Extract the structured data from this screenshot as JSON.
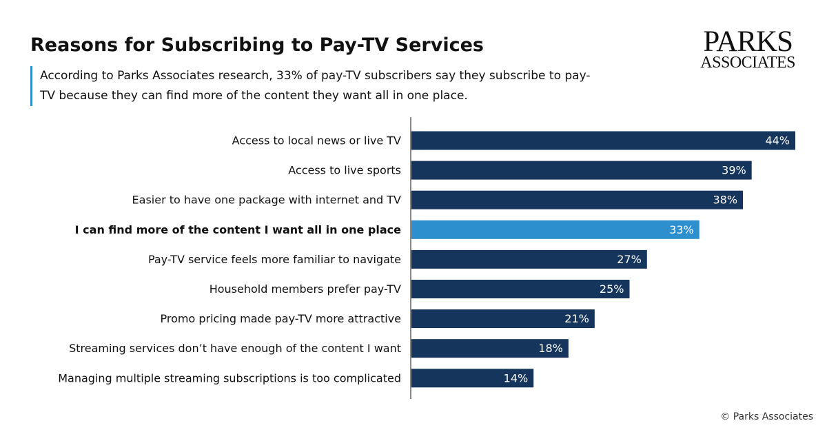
{
  "chart_data": {
    "type": "hbar",
    "title": "Reasons for Subscribing to Pay-TV Services",
    "subtitle": "According to Parks Associates research, 33% of pay-TV subscribers say they subscribe to pay-TV because they can find more of the content they want all in one place.",
    "logo_lines": [
      "PARKS",
      "ASSOCIATES"
    ],
    "footer": "© Parks Associates",
    "categories": [
      "Access to local news or live TV",
      "Access to live sports",
      "Easier to have one package with internet and TV",
      "I can find more of the content I want all in one place",
      "Pay-TV service feels more familiar to navigate",
      "Household members prefer pay-TV",
      "Promo pricing made pay-TV more attractive",
      "Streaming services don’t have enough of the content I want",
      "Managing multiple streaming subscriptions is too complicated"
    ],
    "values": [
      44,
      39,
      38,
      33,
      27,
      25,
      21,
      18,
      14
    ],
    "value_labels": [
      "44%",
      "39%",
      "38%",
      "33%",
      "27%",
      "25%",
      "21%",
      "18%",
      "14%"
    ],
    "colors": [
      "#15355c",
      "#15355c",
      "#15355c",
      "#2d8fcd",
      "#15355c",
      "#15355c",
      "#15355c",
      "#15355c",
      "#15355c"
    ],
    "label_bold": [
      false,
      false,
      false,
      true,
      false,
      false,
      false,
      false,
      false
    ]
  }
}
